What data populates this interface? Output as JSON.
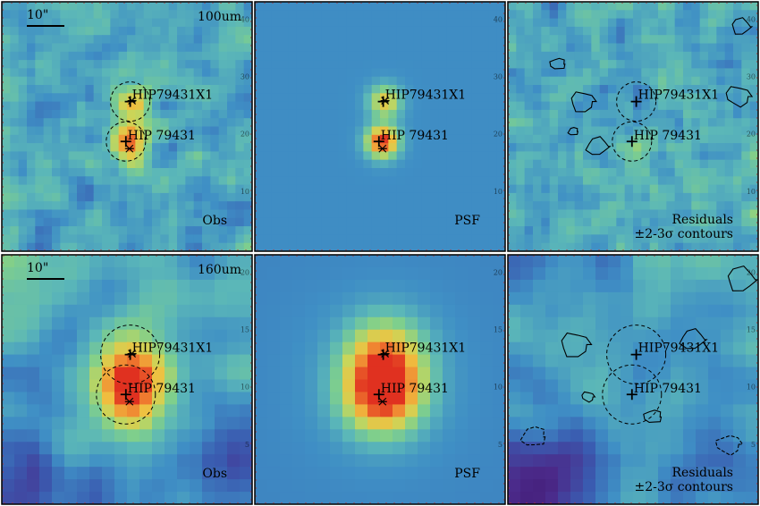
{
  "rows": [
    {
      "band": "100um",
      "scalebar": "10\"",
      "panels": [
        {
          "type": "obs",
          "label": "Obs",
          "sublabel": "",
          "smooth": 0.6,
          "noise": 0.55,
          "sources": 0.9,
          "contours": false
        },
        {
          "type": "psf",
          "label": "PSF",
          "sublabel": "",
          "smooth": 0.0,
          "noise": 0.0,
          "sources": 1.0,
          "contours": false
        },
        {
          "type": "resid",
          "label": "Residuals",
          "sublabel": "±2-3σ contours",
          "smooth": 0.4,
          "noise": 0.6,
          "sources": 0.0,
          "contours": true
        }
      ],
      "ticks": [
        "10",
        "20",
        "30",
        "40"
      ]
    },
    {
      "band": "160um",
      "scalebar": "10\"",
      "panels": [
        {
          "type": "obs",
          "label": "Obs",
          "sublabel": "",
          "smooth": 1.2,
          "noise": 0.45,
          "sources": 0.85,
          "contours": false
        },
        {
          "type": "psf",
          "label": "PSF",
          "sublabel": "",
          "smooth": 0.0,
          "noise": 0.0,
          "sources": 1.0,
          "contours": false
        },
        {
          "type": "resid",
          "label": "Residuals",
          "sublabel": "±2-3σ contours",
          "smooth": 1.0,
          "noise": 0.5,
          "sources": 0.0,
          "contours": true
        }
      ],
      "ticks": [
        "5",
        "10",
        "15",
        "20"
      ]
    }
  ],
  "source_labels": {
    "primary": "HIP 79431",
    "companion": "HIP79431X1"
  },
  "colormap": [
    "#3a0a5a",
    "#4b2a8a",
    "#3a5bb0",
    "#3f8fc5",
    "#5bb7b8",
    "#7fcf8c",
    "#c9d65a",
    "#f0c040",
    "#f08030",
    "#e03020"
  ]
}
